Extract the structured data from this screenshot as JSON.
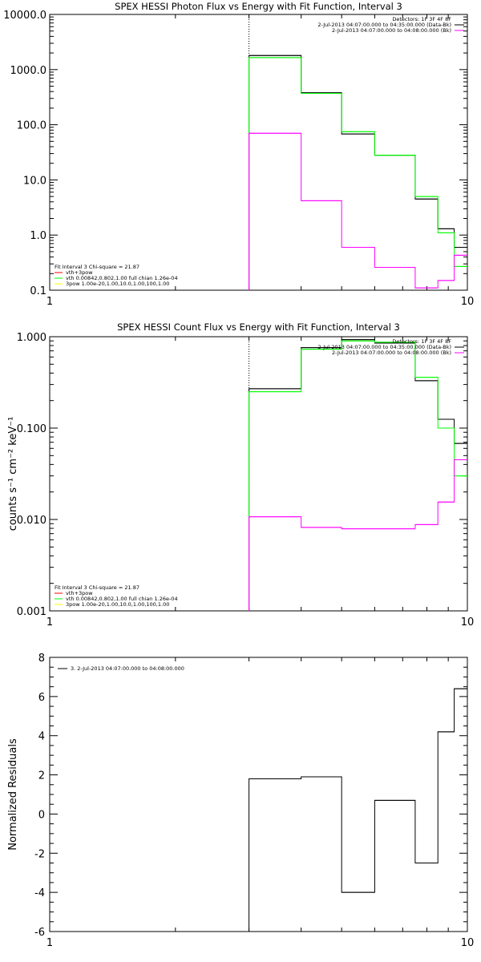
{
  "chart_data": [
    {
      "type": "line",
      "title": "SPEX HESSI Photon Flux vs Energy with Fit Function, Interval 3",
      "ylabel": "",
      "xscale": "log",
      "yscale": "log",
      "xlim": [
        1,
        10
      ],
      "ylim": [
        0.1,
        10000
      ],
      "x_ticks": [
        "1",
        "10"
      ],
      "y_ticks": [
        "0.1",
        "1.0",
        "10.0",
        "100.0",
        "1000.0",
        "10000.0"
      ],
      "marker_x": 3,
      "legend_right": [
        {
          "text": "Detectors: 1F 3F 4F 8F",
          "color": ""
        },
        {
          "text": "2-Jul-2013 04:07:00.000 to 04:35:00.000 (Data-Bk)",
          "color": "#000000"
        },
        {
          "text": "2-Jul-2013 04:07:00.000 to 04:08:00.000 (Bk)",
          "color": "#ff00ff"
        }
      ],
      "legend_left": [
        {
          "text": "Fit Interval 3   Chi-square = 21.87",
          "color": ""
        },
        {
          "text": "vth+3pow",
          "color": "#ff0000"
        },
        {
          "text": "vth 0.00842,0.802,1.00   full chian 1.26e-04",
          "color": "#00ff00"
        },
        {
          "text": "3pow 1.00e-20,1.00,10.0,1.00,100,1.00",
          "color": "#ffff00"
        }
      ],
      "series": [
        {
          "color": "#000000",
          "bins": [
            [
              3,
              4,
              1800
            ],
            [
              4,
              5,
              380
            ],
            [
              5,
              6,
              68
            ],
            [
              6,
              7.5,
              28
            ],
            [
              7.5,
              8.5,
              4.5
            ],
            [
              8.5,
              9.3,
              1.3
            ],
            [
              9.3,
              10,
              0.6
            ]
          ]
        },
        {
          "color": "#00ff00",
          "bins": [
            [
              3,
              4,
              1650
            ],
            [
              4,
              5,
              370
            ],
            [
              5,
              6,
              75
            ],
            [
              6,
              7.5,
              28
            ],
            [
              7.5,
              8.5,
              5
            ],
            [
              8.5,
              9.3,
              1.1
            ],
            [
              9.3,
              10,
              0.27
            ]
          ]
        },
        {
          "color": "#ff00ff",
          "bins": [
            [
              3,
              4,
              70
            ],
            [
              4,
              5,
              4.2
            ],
            [
              5,
              6,
              0.6
            ],
            [
              6,
              7.5,
              0.26
            ],
            [
              7.5,
              8.5,
              0.11
            ],
            [
              8.5,
              9.3,
              0.15
            ],
            [
              9.3,
              10,
              0.43
            ]
          ]
        }
      ]
    },
    {
      "type": "line",
      "title": "SPEX HESSI Count Flux vs Energy with Fit Function, Interval 3",
      "ylabel": "counts s⁻¹ cm⁻² keV⁻¹",
      "xscale": "log",
      "yscale": "log",
      "xlim": [
        1,
        10
      ],
      "ylim": [
        0.001,
        1.0
      ],
      "x_ticks": [
        "1",
        "10"
      ],
      "y_ticks": [
        "0.001",
        "0.010",
        "0.100",
        "1.000"
      ],
      "marker_x": 3,
      "legend_right": [
        {
          "text": "Detectors: 1F 3F 4F 8F",
          "color": ""
        },
        {
          "text": "2-Jul-2013 04:07:00.000 to 04:35:00.000 (Data-Bk)",
          "color": "#000000"
        },
        {
          "text": "2-Jul-2013 04:07:00.000 to 04:08:00.000 (Bk)",
          "color": "#ff00ff"
        }
      ],
      "legend_left": [
        {
          "text": "Fit Interval 3   Chi-square = 21.87",
          "color": ""
        },
        {
          "text": "vth+3pow",
          "color": "#ff0000"
        },
        {
          "text": "vth 0.00842,0.802,1.00   full chian 1.26e-04",
          "color": "#00ff00"
        },
        {
          "text": "3pow 1.00e-20,1.00,10.0,1.00,100,1.00",
          "color": "#ffff00"
        }
      ],
      "series": [
        {
          "color": "#000000",
          "bins": [
            [
              3,
              4,
              0.27
            ],
            [
              4,
              5,
              0.76
            ],
            [
              5,
              6,
              0.93
            ],
            [
              6,
              7.5,
              0.85
            ],
            [
              7.5,
              8.5,
              0.33
            ],
            [
              8.5,
              9.3,
              0.125
            ],
            [
              9.3,
              10,
              0.068
            ]
          ]
        },
        {
          "color": "#00ff00",
          "bins": [
            [
              3,
              4,
              0.25
            ],
            [
              4,
              5,
              0.73
            ],
            [
              5,
              6,
              0.9
            ],
            [
              6,
              7.5,
              0.87
            ],
            [
              7.5,
              8.5,
              0.36
            ],
            [
              8.5,
              9.3,
              0.1
            ],
            [
              9.3,
              10,
              0.03
            ]
          ]
        },
        {
          "color": "#ff00ff",
          "bins": [
            [
              3,
              4,
              0.0107
            ],
            [
              4,
              5,
              0.0082
            ],
            [
              5,
              6,
              0.0079
            ],
            [
              6,
              7.5,
              0.0079
            ],
            [
              7.5,
              8.5,
              0.0088
            ],
            [
              8.5,
              9.3,
              0.0155
            ],
            [
              9.3,
              10,
              0.045
            ]
          ]
        }
      ]
    },
    {
      "type": "line",
      "title": "",
      "ylabel": "Normalized Residuals",
      "xscale": "log",
      "yscale": "linear",
      "xlim": [
        1,
        10
      ],
      "ylim": [
        -6,
        8
      ],
      "x_ticks": [
        "1",
        "10"
      ],
      "y_ticks": [
        "-6",
        "-4",
        "-2",
        "0",
        "2",
        "4",
        "6",
        "8"
      ],
      "legend_left": [],
      "legend_right": [],
      "legend_top": [
        {
          "text": "3.  2-Jul-2013 04:07:00.000 to 04:08:00.000",
          "color": "#000000"
        }
      ],
      "series": [
        {
          "color": "#000000",
          "bins": [
            [
              3,
              4,
              1.8
            ],
            [
              4,
              5,
              1.9
            ],
            [
              5,
              6,
              -4.0
            ],
            [
              6,
              7.5,
              0.7
            ],
            [
              7.5,
              8.5,
              -2.5
            ],
            [
              8.5,
              9.3,
              4.2
            ],
            [
              9.3,
              10,
              6.4
            ]
          ]
        }
      ]
    }
  ]
}
